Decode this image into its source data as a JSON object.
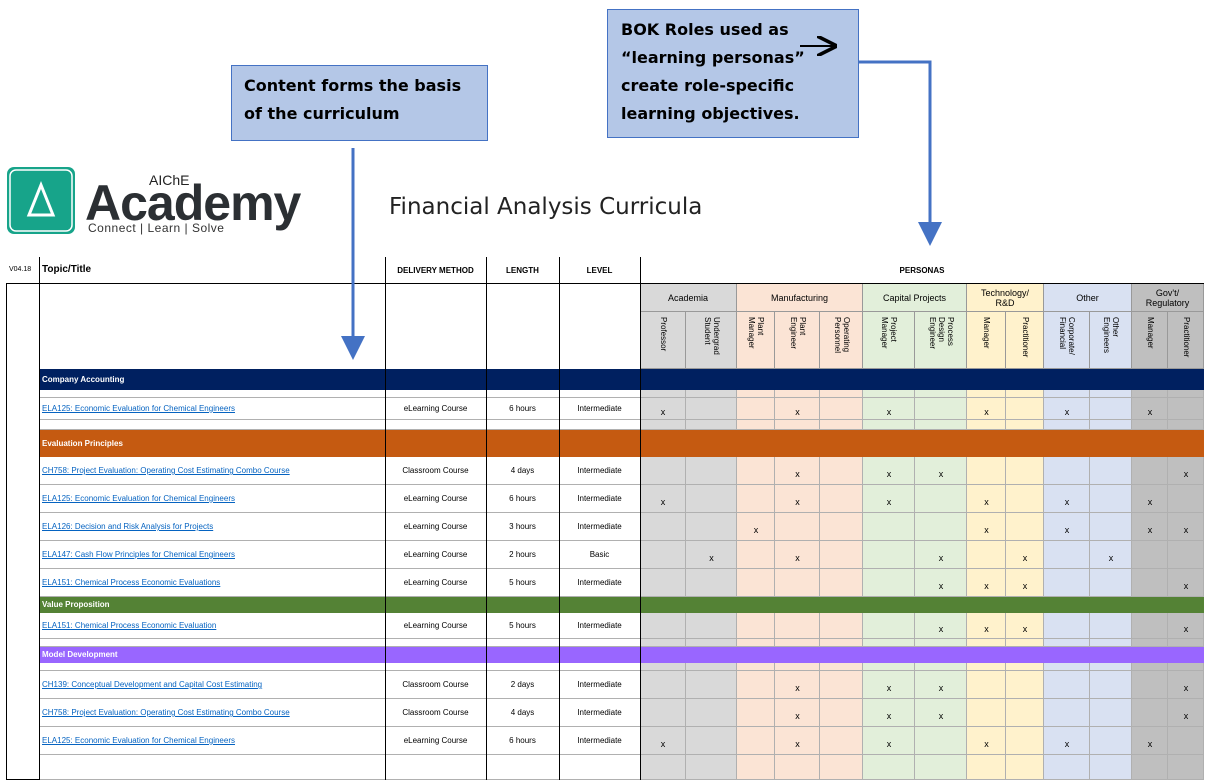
{
  "callouts": {
    "content": [
      "Content forms the basis",
      "of the curriculum"
    ],
    "bok": [
      "BOK Roles used as",
      "“learning personas”",
      "create role-specific",
      "learning objectives."
    ]
  },
  "logo": {
    "brand_small": "AIChE",
    "brand": "Academy",
    "tagline": "Connect | Learn | Solve"
  },
  "title": "Financial Analysis Curricula",
  "table": {
    "version": "V04.18",
    "headers": {
      "topic": "Topic/Title",
      "delivery": "DELIVERY METHOD",
      "length": "LENGTH",
      "level": "LEVEL",
      "personas": "PERSONAS"
    },
    "groups": [
      {
        "label": "Academia",
        "color": "#d9d9d9"
      },
      {
        "label": "Manufacturing",
        "color": "#fbe4d5"
      },
      {
        "label": "Capital Projects",
        "color": "#e2efda"
      },
      {
        "label": "Technology/\nR&D",
        "color": "#fff2cc"
      },
      {
        "label": "Other",
        "color": "#d9e1f2"
      },
      {
        "label": "Gov't/\nRegulatory",
        "color": "#bfbfbf"
      }
    ],
    "personas": [
      [
        "Professor"
      ],
      [
        "Undergrad",
        "Student"
      ],
      [
        "Plant",
        "Manager"
      ],
      [
        "Plant",
        "Engineer"
      ],
      [
        "Operating",
        "Personnel"
      ],
      [
        "Project",
        "Manager"
      ],
      [
        "Process",
        "Design",
        "Engineer"
      ],
      [
        "Manager"
      ],
      [
        "Practitioner"
      ],
      [
        "Corporate/",
        "Financial"
      ],
      [
        "Other",
        "Engineers"
      ],
      [
        "Manager"
      ],
      [
        "Practitioner"
      ]
    ],
    "mark": "x",
    "sections": [
      {
        "label": "Company Accounting",
        "color": "#002060",
        "rows": [
          {
            "title": "ELA125: Economic Evaluation for Chemical Engineers",
            "delivery": "eLearning Course",
            "length": "6 hours",
            "level": "Intermediate",
            "marks": [
              0,
              3,
              5,
              7,
              9,
              11
            ]
          }
        ]
      },
      {
        "label": "Evaluation Principles",
        "color": "#c55a11",
        "rows": [
          {
            "title": "CH758: Project Evaluation: Operating Cost Estimating Combo Course",
            "delivery": "Classroom Course",
            "length": "4 days",
            "level": "Intermediate",
            "marks": [
              3,
              5,
              6,
              12
            ]
          },
          {
            "title": "ELA125: Economic Evaluation for Chemical Engineers",
            "delivery": "eLearning Course",
            "length": "6 hours",
            "level": "Intermediate",
            "marks": [
              0,
              3,
              5,
              7,
              9,
              11
            ]
          },
          {
            "title": "ELA126: Decision and Risk Analysis for Projects",
            "delivery": "eLearning Course",
            "length": "3 hours",
            "level": "Intermediate",
            "marks": [
              2,
              7,
              9,
              11,
              12
            ]
          },
          {
            "title": "ELA147: Cash Flow Principles for Chemical Engineers",
            "delivery": "eLearning Course",
            "length": "2 hours",
            "level": "Basic",
            "marks": [
              1,
              3,
              6,
              8,
              10
            ]
          },
          {
            "title": "ELA151: Chemical Process Economic Evaluations",
            "delivery": "eLearning Course",
            "length": "5 hours",
            "level": "Intermediate",
            "marks": [
              6,
              7,
              8,
              12
            ]
          }
        ]
      },
      {
        "label": "Value Proposition",
        "color": "#548235",
        "rows": [
          {
            "title": "ELA151: Chemical Process Economic Evaluation",
            "delivery": "eLearning Course",
            "length": "5 hours",
            "level": "Intermediate",
            "marks": [
              6,
              7,
              8,
              12
            ]
          }
        ]
      },
      {
        "label": "Model Development",
        "color": "#9966ff",
        "rows": [
          {
            "title": "CH139: Conceptual Development and Capital Cost Estimating",
            "delivery": "Classroom Course",
            "length": "2 days",
            "level": "Intermediate",
            "marks": [
              3,
              5,
              6,
              12
            ]
          },
          {
            "title": "CH758: Project Evaluation: Operating Cost Estimating Combo Course",
            "delivery": "Classroom Course",
            "length": "4 days",
            "level": "Intermediate",
            "marks": [
              3,
              5,
              6,
              12
            ]
          },
          {
            "title": "ELA125: Economic Evaluation for Chemical Engineers",
            "delivery": "eLearning Course",
            "length": "6 hours",
            "level": "Intermediate",
            "marks": [
              0,
              3,
              5,
              7,
              9,
              11
            ]
          }
        ]
      }
    ]
  }
}
